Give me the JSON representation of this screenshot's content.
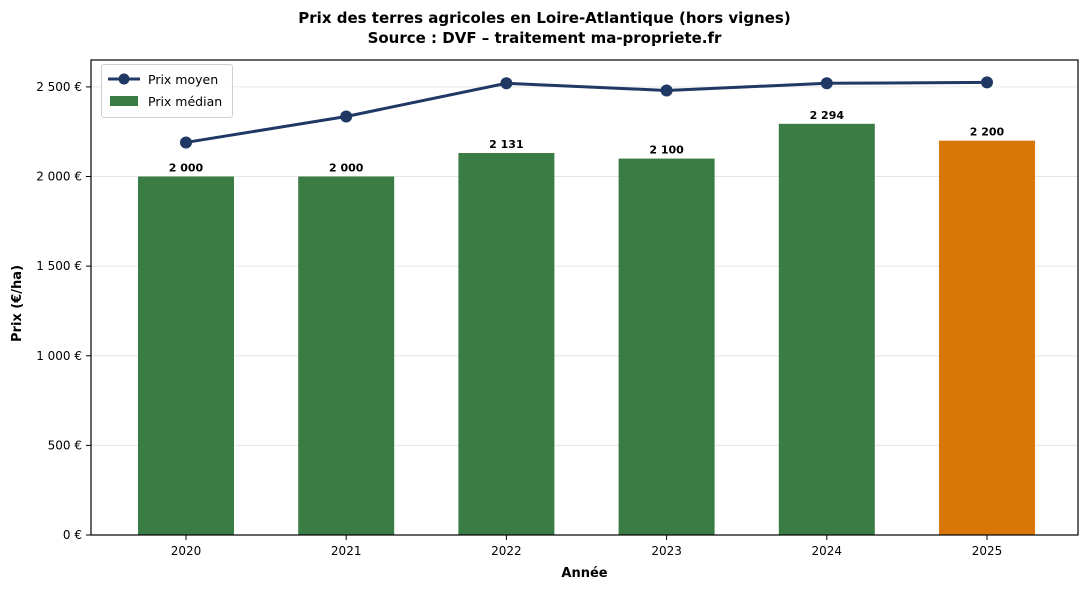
{
  "chart_data": {
    "type": "bar",
    "title": "Prix des terres agricoles en Loire-Atlantique (hors vignes)",
    "subtitle": "Source : DVF – traitement ma-propriete.fr",
    "xlabel": "Année",
    "ylabel": "Prix (€/ha)",
    "categories": [
      "2020",
      "2021",
      "2022",
      "2023",
      "2024",
      "2025"
    ],
    "ylim": [
      0,
      2650
    ],
    "yticks": [
      0,
      500,
      1000,
      1500,
      2000,
      2500
    ],
    "ytick_labels": [
      "0 €",
      "500 €",
      "1 000 €",
      "1 500 €",
      "2 000 €",
      "2 500 €"
    ],
    "grid": "horizontal",
    "legend_position": "upper left",
    "series": [
      {
        "name": "Prix médian",
        "type": "bar",
        "values": [
          2000,
          2000,
          2131,
          2100,
          2294,
          2200
        ],
        "value_labels": [
          "2 000",
          "2 000",
          "2 131",
          "2 100",
          "2 294",
          "2 200"
        ],
        "colors": [
          "#3a7d44",
          "#3a7d44",
          "#3a7d44",
          "#3a7d44",
          "#3a7d44",
          "#d97706"
        ]
      },
      {
        "name": "Prix moyen",
        "type": "line",
        "values": [
          2190,
          2335,
          2520,
          2480,
          2520,
          2525
        ],
        "color": "#1f3864"
      }
    ]
  },
  "legend": {
    "items": [
      {
        "label": "Prix moyen"
      },
      {
        "label": "Prix médian"
      }
    ]
  }
}
